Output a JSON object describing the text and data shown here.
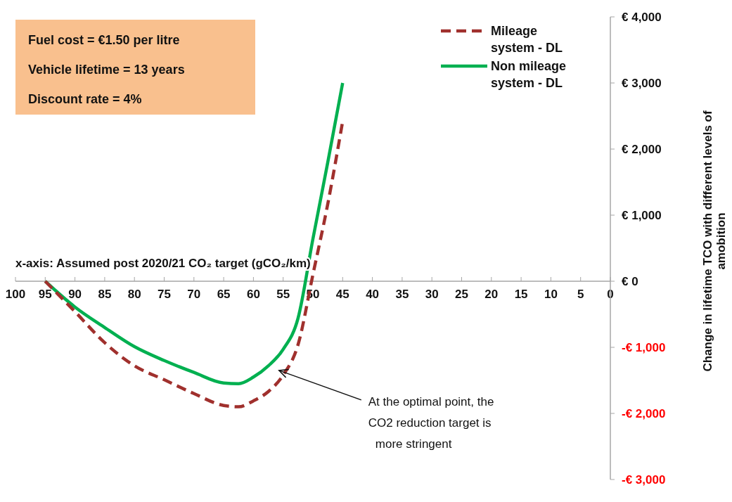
{
  "chart_data": {
    "type": "line",
    "xlabel": "x-axis: Assumed post 2020/21 CO₂ target (gCO₂/km)",
    "ylabel": "Change in lifetime  TCO with different levels of amobition",
    "x": [
      95,
      90,
      85,
      80,
      75,
      70,
      65,
      62.5,
      60,
      57.5,
      55,
      52.5,
      50,
      47.5,
      45
    ],
    "series": [
      {
        "name": "Mileage system - DL",
        "color": "#a0302d",
        "line_style": "dashed",
        "values": [
          0,
          -460,
          -930,
          -1280,
          -1490,
          -1700,
          -1880,
          -1900,
          -1810,
          -1670,
          -1420,
          -960,
          100,
          1170,
          2420
        ]
      },
      {
        "name": "Non mileage system - DL",
        "color": "#00b050",
        "line_style": "solid",
        "values": [
          0,
          -390,
          -700,
          -990,
          -1200,
          -1380,
          -1540,
          -1550,
          -1450,
          -1280,
          -1030,
          -560,
          640,
          1800,
          3000
        ]
      }
    ],
    "xlim": [
      100,
      0
    ],
    "xticks": [
      100,
      95,
      90,
      85,
      80,
      75,
      70,
      65,
      60,
      55,
      50,
      45,
      40,
      35,
      30,
      25,
      20,
      15,
      10,
      5,
      0
    ],
    "ylim": [
      -3000,
      4000
    ],
    "yticks": [
      {
        "value": 4000,
        "label": "€ 4,000"
      },
      {
        "value": 3000,
        "label": "€ 3,000"
      },
      {
        "value": 2000,
        "label": "€ 2,000"
      },
      {
        "value": 1000,
        "label": "€ 1,000"
      },
      {
        "value": 0,
        "label": "€ 0"
      },
      {
        "value": -1000,
        "label": "-€ 1,000"
      },
      {
        "value": -2000,
        "label": "-€ 2,000"
      },
      {
        "value": -3000,
        "label": "-€ 3,000"
      }
    ],
    "legend": "top right",
    "annotations": [
      "Fuel cost = €1.50 per litre",
      "Vehicle lifetime = 13 years",
      "Discount rate = 4%",
      {
        "text": "At the optimal point, the CO2 reduction target is more stringent",
        "x": 55.7,
        "y": -1350
      }
    ]
  }
}
